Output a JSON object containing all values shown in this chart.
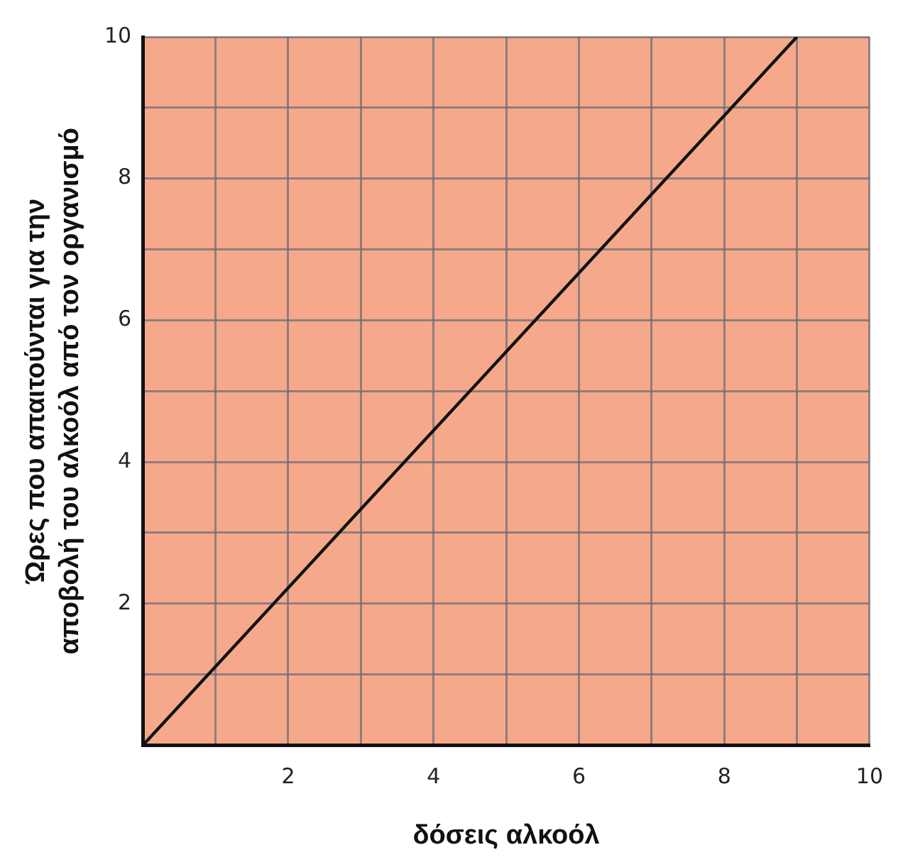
{
  "chart_data": {
    "type": "line",
    "xlabel": "δόσεις αλκοόλ",
    "ylabel": "Ώρες που απαιτούνται για την\nαποβολή του αλκοόλ από τον οργανισμό",
    "x": [
      0,
      9
    ],
    "series": [
      {
        "color": "#111111",
        "values": [
          0,
          10
        ]
      }
    ],
    "xlim": [
      0,
      10
    ],
    "ylim": [
      0,
      10
    ],
    "xticks": [
      {
        "value": 0,
        "label": null
      },
      {
        "value": 1,
        "label": null
      },
      2,
      {
        "value": 3,
        "label": null
      },
      4,
      {
        "value": 5,
        "label": null
      },
      6,
      {
        "value": 7,
        "label": null
      },
      8,
      {
        "value": 9,
        "label": null
      },
      10
    ],
    "yticks": [
      {
        "value": 0,
        "label": null
      },
      {
        "value": 1,
        "label": null
      },
      2,
      {
        "value": 3,
        "label": null
      },
      4,
      {
        "value": 5,
        "label": null
      },
      6,
      {
        "value": 7,
        "label": null
      },
      8,
      {
        "value": 9,
        "label": null
      },
      10
    ],
    "grid": true,
    "legend": false,
    "marker": "none",
    "line_style": "solid"
  }
}
